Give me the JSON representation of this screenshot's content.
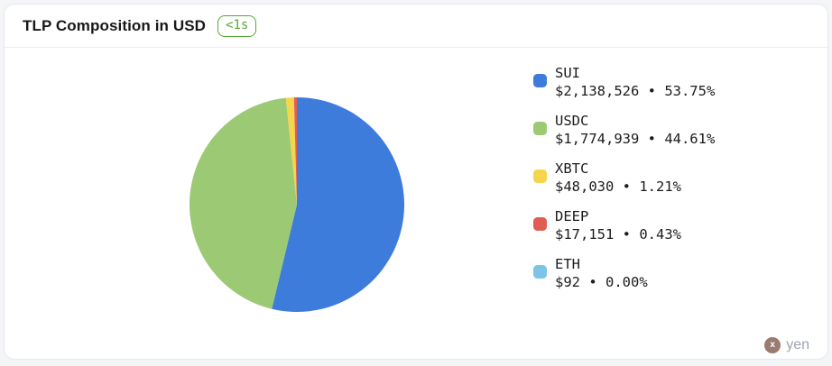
{
  "header": {
    "title": "TLP Composition in USD",
    "latency_badge": "<1s"
  },
  "chart_data": {
    "type": "pie",
    "title": "TLP Composition in USD",
    "legend_position": "right",
    "start_angle_deg": 0,
    "direction": "clockwise",
    "separator": "•",
    "slices": [
      {
        "label": "SUI",
        "value_usd": "$2,138,526",
        "pct": 53.75,
        "color": "#3e7cdb"
      },
      {
        "label": "USDC",
        "value_usd": "$1,774,939",
        "pct": 44.61,
        "color": "#9cc973"
      },
      {
        "label": "XBTC",
        "value_usd": "$48,030",
        "pct": 1.21,
        "color": "#f6d54b"
      },
      {
        "label": "DEEP",
        "value_usd": "$17,151",
        "pct": 0.43,
        "color": "#e15d53"
      },
      {
        "label": "ETH",
        "value_usd": "$92",
        "pct": 0.0,
        "color": "#7cc5e8"
      }
    ]
  },
  "footer": {
    "avatar_letter": "x",
    "username": "yen",
    "avatar_color": "#9a7b70"
  }
}
